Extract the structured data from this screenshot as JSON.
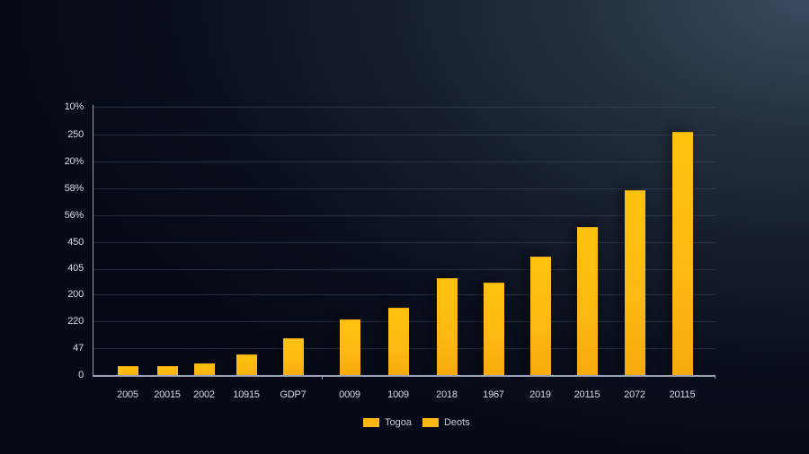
{
  "chart_data": {
    "type": "bar",
    "title": "",
    "xlabel": "",
    "ylabel": "",
    "categories": [
      "2005",
      "20015",
      "2002",
      "10915",
      "GDP7",
      "0009",
      "1009",
      "2018",
      "1967",
      "2019",
      "20115",
      "2072",
      "20115"
    ],
    "values": [
      0.36,
      0.36,
      0.46,
      0.8,
      1.4,
      2.1,
      2.5,
      3.6,
      3.45,
      4.4,
      5.5,
      6.85,
      9.0
    ],
    "value_units": "gridline steps above baseline (y tick labels are non-numeric/garbled)",
    "y_tick_labels": [
      "0",
      "47",
      "220",
      "200",
      "405",
      "450",
      "56%",
      "58%",
      "20%",
      "250",
      "10%"
    ],
    "ylim": [
      0,
      10
    ],
    "grid": true,
    "legend": {
      "position": "bottom-center",
      "entries": [
        "Togoa",
        "Deots"
      ]
    },
    "bar_color": "#fdb813"
  },
  "axes": {
    "y_ticks": [
      "10%",
      "250",
      "20%",
      "58%",
      "56%",
      "450",
      "405",
      "200",
      "220",
      "47",
      "0"
    ],
    "x_ticks": [
      "2005",
      "20015",
      "2002",
      "10915",
      "GDP7",
      "0009",
      "1009",
      "2018",
      "1967",
      "2019",
      "20115",
      "2072",
      "20115"
    ]
  },
  "legend": {
    "items": [
      {
        "label": "Togoa",
        "color": "#fdb813"
      },
      {
        "label": "Deots",
        "color": "#fdb813"
      }
    ]
  },
  "colors": {
    "bar": "#fdb813",
    "axis": "#9aa3b3",
    "text": "#d7dbe2",
    "background_dark": "#050a16",
    "background_light": "#3a4a5e"
  }
}
